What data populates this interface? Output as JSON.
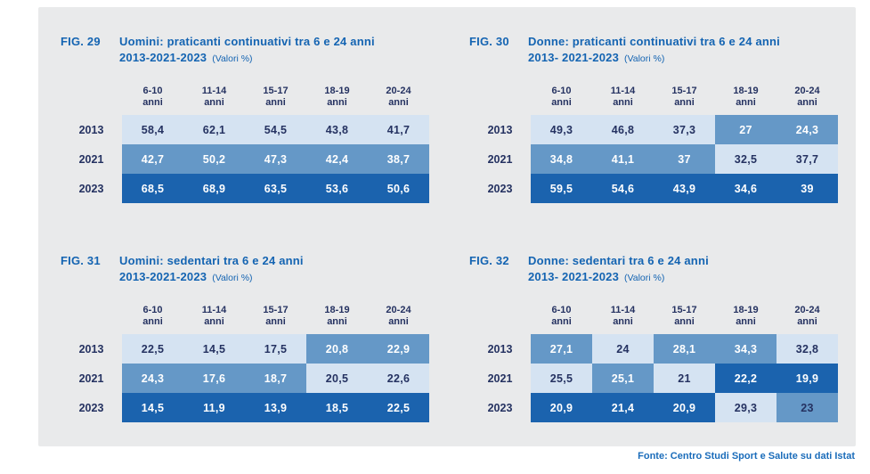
{
  "palette": {
    "panel_bg": "#e9eaeb",
    "cell_light": "#d5e3f2",
    "cell_medium": "#6598c7",
    "cell_dark": "#1b63ae",
    "text_navy": "#253261",
    "title_blue": "#1464b2",
    "source_blue": "#1a6cba"
  },
  "footer": {
    "source": "Fonte: Centro Studi Sport e Salute su dati Istat"
  },
  "chart_data": [
    {
      "type": "table",
      "fig_label": "FIG. 29",
      "title": "Uomini: praticanti continuativi tra 6 e 24 anni",
      "years_line": "2013-2021-2023",
      "unit_note": "(Valori %)",
      "columns": [
        {
          "line1": "6-10",
          "line2": "anni"
        },
        {
          "line1": "11-14",
          "line2": "anni"
        },
        {
          "line1": "15-17",
          "line2": "anni"
        },
        {
          "line1": "18-19",
          "line2": "anni"
        },
        {
          "line1": "20-24",
          "line2": "anni"
        }
      ],
      "rows": [
        {
          "year": "2013",
          "cells": [
            {
              "value": "58,4",
              "tone": "light"
            },
            {
              "value": "62,1",
              "tone": "light"
            },
            {
              "value": "54,5",
              "tone": "light"
            },
            {
              "value": "43,8",
              "tone": "light"
            },
            {
              "value": "41,7",
              "tone": "light"
            }
          ]
        },
        {
          "year": "2021",
          "cells": [
            {
              "value": "42,7",
              "tone": "medium"
            },
            {
              "value": "50,2",
              "tone": "medium"
            },
            {
              "value": "47,3",
              "tone": "medium"
            },
            {
              "value": "42,4",
              "tone": "medium"
            },
            {
              "value": "38,7",
              "tone": "medium"
            }
          ]
        },
        {
          "year": "2023",
          "cells": [
            {
              "value": "68,5",
              "tone": "dark"
            },
            {
              "value": "68,9",
              "tone": "dark"
            },
            {
              "value": "63,5",
              "tone": "dark"
            },
            {
              "value": "53,6",
              "tone": "dark"
            },
            {
              "value": "50,6",
              "tone": "dark"
            }
          ]
        }
      ]
    },
    {
      "type": "table",
      "fig_label": "FIG. 30",
      "title": "Donne: praticanti continuativi tra 6 e 24 anni",
      "years_line": "2013- 2021-2023",
      "unit_note": "(Valori %)",
      "columns": [
        {
          "line1": "6-10",
          "line2": "anni"
        },
        {
          "line1": "11-14",
          "line2": "anni"
        },
        {
          "line1": "15-17",
          "line2": "anni"
        },
        {
          "line1": "18-19",
          "line2": "anni"
        },
        {
          "line1": "20-24",
          "line2": "anni"
        }
      ],
      "rows": [
        {
          "year": "2013",
          "cells": [
            {
              "value": "49,3",
              "tone": "light"
            },
            {
              "value": "46,8",
              "tone": "light"
            },
            {
              "value": "37,3",
              "tone": "light"
            },
            {
              "value": "27",
              "tone": "medium"
            },
            {
              "value": "24,3",
              "tone": "medium"
            }
          ]
        },
        {
          "year": "2021",
          "cells": [
            {
              "value": "34,8",
              "tone": "medium"
            },
            {
              "value": "41,1",
              "tone": "medium"
            },
            {
              "value": "37",
              "tone": "medium"
            },
            {
              "value": "32,5",
              "tone": "light"
            },
            {
              "value": "37,7",
              "tone": "light"
            }
          ]
        },
        {
          "year": "2023",
          "cells": [
            {
              "value": "59,5",
              "tone": "dark"
            },
            {
              "value": "54,6",
              "tone": "dark"
            },
            {
              "value": "43,9",
              "tone": "dark"
            },
            {
              "value": "34,6",
              "tone": "dark"
            },
            {
              "value": "39",
              "tone": "dark"
            }
          ]
        }
      ]
    },
    {
      "type": "table",
      "fig_label": "FIG. 31",
      "title": "Uomini: sedentari tra 6 e 24 anni",
      "years_line": "2013-2021-2023",
      "unit_note": "(Valori %)",
      "columns": [
        {
          "line1": "6-10",
          "line2": "anni"
        },
        {
          "line1": "11-14",
          "line2": "anni"
        },
        {
          "line1": "15-17",
          "line2": "anni"
        },
        {
          "line1": "18-19",
          "line2": "anni"
        },
        {
          "line1": "20-24",
          "line2": "anni"
        }
      ],
      "rows": [
        {
          "year": "2013",
          "cells": [
            {
              "value": "22,5",
              "tone": "light"
            },
            {
              "value": "14,5",
              "tone": "light"
            },
            {
              "value": "17,5",
              "tone": "light"
            },
            {
              "value": "20,8",
              "tone": "medium"
            },
            {
              "value": "22,9",
              "tone": "medium"
            }
          ]
        },
        {
          "year": "2021",
          "cells": [
            {
              "value": "24,3",
              "tone": "medium"
            },
            {
              "value": "17,6",
              "tone": "medium"
            },
            {
              "value": "18,7",
              "tone": "medium"
            },
            {
              "value": "20,5",
              "tone": "light"
            },
            {
              "value": "22,6",
              "tone": "light"
            }
          ]
        },
        {
          "year": "2023",
          "cells": [
            {
              "value": "14,5",
              "tone": "dark"
            },
            {
              "value": "11,9",
              "tone": "dark"
            },
            {
              "value": "13,9",
              "tone": "dark"
            },
            {
              "value": "18,5",
              "tone": "dark"
            },
            {
              "value": "22,5",
              "tone": "dark"
            }
          ]
        }
      ]
    },
    {
      "type": "table",
      "fig_label": "FIG. 32",
      "title": "Donne: sedentari tra 6 e 24 anni",
      "years_line": "2013- 2021-2023",
      "unit_note": "(Valori %)",
      "columns": [
        {
          "line1": "6-10",
          "line2": "anni"
        },
        {
          "line1": "11-14",
          "line2": "anni"
        },
        {
          "line1": "15-17",
          "line2": "anni"
        },
        {
          "line1": "18-19",
          "line2": "anni"
        },
        {
          "line1": "20-24",
          "line2": "anni"
        }
      ],
      "rows": [
        {
          "year": "2013",
          "cells": [
            {
              "value": "27,1",
              "tone": "medium"
            },
            {
              "value": "24",
              "tone": "light"
            },
            {
              "value": "28,1",
              "tone": "medium"
            },
            {
              "value": "34,3",
              "tone": "medium"
            },
            {
              "value": "32,8",
              "tone": "light"
            }
          ]
        },
        {
          "year": "2021",
          "cells": [
            {
              "value": "25,5",
              "tone": "light"
            },
            {
              "value": "25,1",
              "tone": "medium"
            },
            {
              "value": "21",
              "tone": "light"
            },
            {
              "value": "22,2",
              "tone": "dark"
            },
            {
              "value": "19,9",
              "tone": "dark"
            }
          ]
        },
        {
          "year": "2023",
          "cells": [
            {
              "value": "20,9",
              "tone": "dark"
            },
            {
              "value": "21,4",
              "tone": "dark"
            },
            {
              "value": "20,9",
              "tone": "dark"
            },
            {
              "value": "29,3",
              "tone": "light"
            },
            {
              "value": "23",
              "tone": "medium_navy"
            }
          ]
        }
      ]
    }
  ]
}
